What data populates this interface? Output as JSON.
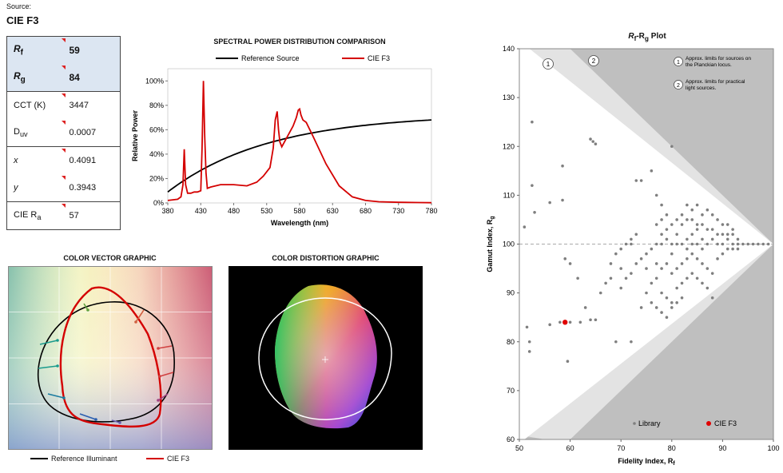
{
  "source": {
    "label": "Source:",
    "name": "CIE F3"
  },
  "metrics": {
    "rf": {
      "label": "R",
      "sub": "f",
      "value": "59"
    },
    "rg": {
      "label": "R",
      "sub": "g",
      "value": "84"
    },
    "cct": {
      "label": "CCT (K)",
      "value": "3447"
    },
    "duv": {
      "label": "D",
      "sub": "uv",
      "value": "0.0007"
    },
    "x": {
      "label": "x",
      "value": "0.4091"
    },
    "y": {
      "label": "y",
      "value": "0.3943"
    },
    "ra": {
      "label": "CIE R",
      "sub": "a",
      "value": "57"
    }
  },
  "spd": {
    "title": "SPECTRAL POWER DISTRIBUTION COMPARISON",
    "legend": [
      "Reference Source",
      "CIE F3"
    ],
    "xlabel": "Wavelength (nm)",
    "ylabel": "Relative Power",
    "xticks": [
      "380",
      "430",
      "480",
      "530",
      "580",
      "630",
      "680",
      "730",
      "780"
    ],
    "yticks": [
      "0%",
      "20%",
      "40%",
      "60%",
      "80%",
      "100%"
    ]
  },
  "cvg": {
    "title": "COLOR VECTOR GRAPHIC",
    "legend": [
      "Reference Illuminant",
      "CIE F3"
    ]
  },
  "cdg": {
    "title": "COLOR DISTORTION GRAPHIC"
  },
  "rfrg": {
    "title_main": "R",
    "title_sub1": "f",
    "title_mid": "-R",
    "title_sub2": "g",
    "title_end": " Plot",
    "xlabel_main": "Fidelity Index, R",
    "xlabel_sub": "f",
    "ylabel_main": "Gamut Index, R",
    "ylabel_sub": "g",
    "note1": "Approx. limits for sources on the Planckian locus.",
    "note2": "Approx. limits for practical light sources.",
    "marker1": "1",
    "marker2": "2",
    "legend_library": "Library",
    "legend_source": "CIE F3",
    "xticks": [
      "50",
      "60",
      "70",
      "80",
      "90",
      "100"
    ],
    "yticks": [
      "60",
      "70",
      "80",
      "90",
      "100",
      "110",
      "120",
      "130",
      "140"
    ]
  },
  "colors": {
    "reference": "#000000",
    "test": "#d40000",
    "library": "#7f7f7f",
    "band_dark": "#bfbfbf",
    "band_light": "#e3e3e3"
  },
  "chart_data": [
    {
      "type": "line",
      "title": "SPECTRAL POWER DISTRIBUTION COMPARISON",
      "xlabel": "Wavelength (nm)",
      "ylabel": "Relative Power",
      "xlim": [
        380,
        780
      ],
      "ylim": [
        0,
        1.1
      ],
      "series": [
        {
          "name": "Reference Source",
          "x": [
            380,
            430,
            480,
            530,
            580,
            630,
            680,
            730,
            780
          ],
          "y": [
            0.09,
            0.18,
            0.28,
            0.38,
            0.48,
            0.56,
            0.62,
            0.66,
            0.68
          ]
        },
        {
          "name": "CIE F3",
          "x": [
            380,
            395,
            400,
            403,
            405,
            407,
            410,
            415,
            420,
            425,
            430,
            432,
            434,
            436,
            438,
            440,
            445,
            460,
            480,
            500,
            515,
            525,
            535,
            540,
            543,
            546,
            548,
            550,
            553,
            560,
            570,
            575,
            578,
            580,
            582,
            585,
            590,
            600,
            620,
            640,
            660,
            680,
            700,
            730,
            760,
            780
          ],
          "y": [
            0.02,
            0.03,
            0.05,
            0.15,
            0.44,
            0.15,
            0.08,
            0.08,
            0.09,
            0.09,
            0.1,
            0.45,
            1.0,
            0.55,
            0.25,
            0.12,
            0.13,
            0.15,
            0.15,
            0.14,
            0.17,
            0.22,
            0.29,
            0.45,
            0.68,
            0.75,
            0.6,
            0.5,
            0.46,
            0.53,
            0.63,
            0.7,
            0.76,
            0.77,
            0.72,
            0.68,
            0.66,
            0.55,
            0.32,
            0.14,
            0.05,
            0.02,
            0.01,
            0.005,
            0.003,
            0.002
          ]
        }
      ]
    },
    {
      "type": "scatter",
      "title": "Rf-Rg Plot",
      "xlabel": "Fidelity Index, Rf",
      "ylabel": "Gamut Index, Rg",
      "xlim": [
        50,
        100
      ],
      "ylim": [
        60,
        140
      ],
      "series": [
        {
          "name": "Library",
          "points": [
            [
              52.5,
              125
            ],
            [
              52.5,
              112
            ],
            [
              53,
              106.5
            ],
            [
              51,
              103.5
            ],
            [
              51.5,
              83
            ],
            [
              52,
              80
            ],
            [
              52,
              78
            ],
            [
              56,
              108.5
            ],
            [
              58.5,
              109
            ],
            [
              58.5,
              116
            ],
            [
              64,
              121.5
            ],
            [
              64.5,
              121
            ],
            [
              65,
              120.5
            ],
            [
              59,
              97
            ],
            [
              60,
              96
            ],
            [
              61.5,
              93
            ],
            [
              59.5,
              76
            ],
            [
              56,
              83.5
            ],
            [
              58,
              84
            ],
            [
              60,
              84
            ],
            [
              62,
              84
            ],
            [
              64,
              84.5
            ],
            [
              65,
              84.5
            ],
            [
              63,
              87
            ],
            [
              66,
              90
            ],
            [
              67,
              92
            ],
            [
              68,
              93
            ],
            [
              70,
              95
            ],
            [
              72,
              100
            ],
            [
              73,
              102
            ],
            [
              73,
              113
            ],
            [
              74,
              113
            ],
            [
              76,
              115
            ],
            [
              77,
              110
            ],
            [
              78,
              108
            ],
            [
              80,
              120
            ],
            [
              69,
              80
            ],
            [
              72,
              80
            ],
            [
              74,
              87
            ],
            [
              75,
              90
            ],
            [
              75,
              95
            ],
            [
              77,
              96
            ],
            [
              77,
              100
            ],
            [
              78,
              100
            ],
            [
              78,
              102
            ],
            [
              79,
              103
            ],
            [
              79,
              101
            ],
            [
              80,
              98
            ],
            [
              80,
              100
            ],
            [
              81,
              100
            ],
            [
              81,
              102
            ],
            [
              82,
              100
            ],
            [
              82,
              104
            ],
            [
              83,
              101
            ],
            [
              83,
              99
            ],
            [
              84,
              100
            ],
            [
              84,
              102
            ],
            [
              85,
              100
            ],
            [
              85,
              103
            ],
            [
              86,
              101
            ],
            [
              86,
              99
            ],
            [
              87,
              100
            ],
            [
              88,
              101
            ],
            [
              89,
              100
            ],
            [
              90,
              100
            ],
            [
              91,
              101
            ],
            [
              92,
              100
            ],
            [
              93,
              100
            ],
            [
              94,
              100
            ],
            [
              95,
              100
            ],
            [
              96,
              100
            ],
            [
              97,
              100
            ],
            [
              98,
              100
            ],
            [
              99,
              100
            ],
            [
              76,
              92
            ],
            [
              77,
              93
            ],
            [
              78,
              95
            ],
            [
              79,
              96
            ],
            [
              80,
              94
            ],
            [
              81,
              95
            ],
            [
              82,
              96
            ],
            [
              83,
              97
            ],
            [
              84,
              98
            ],
            [
              85,
              97
            ],
            [
              86,
              96
            ],
            [
              87,
              95
            ],
            [
              88,
              94
            ],
            [
              89,
              97
            ],
            [
              90,
              98
            ],
            [
              91,
              99
            ],
            [
              92,
              99
            ],
            [
              93,
              99
            ],
            [
              80,
              104
            ],
            [
              81,
              105
            ],
            [
              82,
              106
            ],
            [
              83,
              105
            ],
            [
              84,
              105
            ],
            [
              85,
              104
            ],
            [
              86,
              104
            ],
            [
              87,
              103
            ],
            [
              88,
              103
            ],
            [
              89,
              102
            ],
            [
              90,
              102
            ],
            [
              91,
              102
            ],
            [
              92,
              102
            ],
            [
              93,
              101
            ],
            [
              78,
              90
            ],
            [
              79,
              89
            ],
            [
              80,
              88
            ],
            [
              81,
              91
            ],
            [
              82,
              92
            ],
            [
              83,
              93
            ],
            [
              84,
              94
            ],
            [
              85,
              93
            ],
            [
              86,
              92
            ],
            [
              87,
              91
            ],
            [
              88,
              89
            ],
            [
              83,
              108
            ],
            [
              84,
              107
            ],
            [
              85,
              108
            ],
            [
              86,
              106
            ],
            [
              87,
              107
            ],
            [
              88,
              106
            ],
            [
              89,
              105
            ],
            [
              90,
              104
            ],
            [
              91,
              104
            ],
            [
              92,
              103
            ],
            [
              75,
              98
            ],
            [
              76,
              99
            ],
            [
              77,
              104
            ],
            [
              78,
              105
            ],
            [
              79,
              106
            ],
            [
              74,
              97
            ],
            [
              73,
              96
            ],
            [
              72,
              94
            ],
            [
              71,
              93
            ],
            [
              70,
              91
            ],
            [
              68,
              96
            ],
            [
              69,
              98
            ],
            [
              70,
              99
            ],
            [
              71,
              100
            ],
            [
              72,
              101
            ],
            [
              76,
              88
            ],
            [
              77,
              87
            ],
            [
              78,
              86
            ],
            [
              79,
              85
            ],
            [
              80,
              87
            ],
            [
              81,
              88
            ],
            [
              82,
              89
            ]
          ]
        },
        {
          "name": "CIE F3",
          "points": [
            [
              59,
              84
            ]
          ]
        }
      ]
    }
  ]
}
